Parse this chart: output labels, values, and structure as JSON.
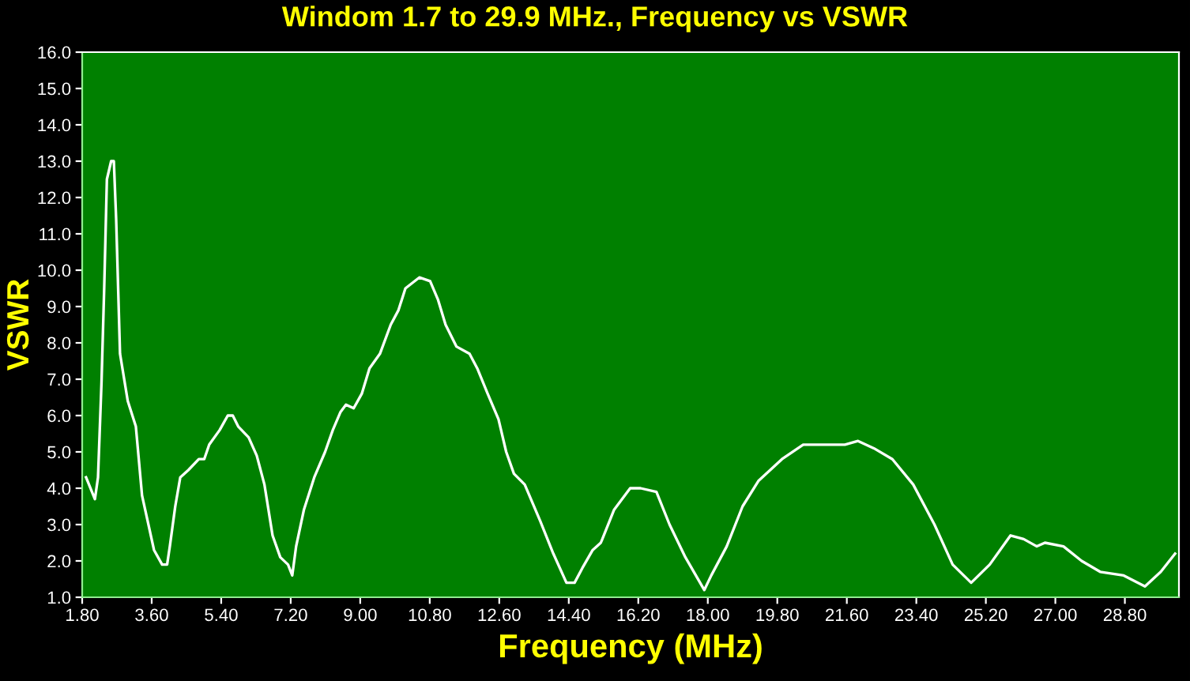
{
  "chart_data": {
    "type": "line",
    "title": "Windom 1.7 to 29.9 MHz., Frequency vs VSWR",
    "xlabel": "Frequency (MHz)",
    "ylabel": "VSWR",
    "series": [
      {
        "color": "#ffffff",
        "x": [
          1.9,
          2.13,
          2.21,
          2.3,
          2.37,
          2.44,
          2.55,
          2.62,
          2.68,
          2.78,
          2.98,
          3.19,
          3.35,
          3.66,
          3.87,
          4.0,
          4.07,
          4.21,
          4.34,
          4.55,
          4.82,
          4.96,
          5.09,
          5.36,
          5.57,
          5.7,
          5.84,
          6.11,
          6.32,
          6.52,
          6.73,
          6.93,
          7.13,
          7.24,
          7.34,
          7.54,
          7.81,
          8.09,
          8.29,
          8.49,
          8.63,
          8.83,
          9.04,
          9.24,
          9.51,
          9.79,
          9.99,
          10.17,
          10.53,
          10.81,
          11.01,
          11.21,
          11.49,
          11.83,
          12.03,
          12.3,
          12.58,
          12.78,
          12.98,
          13.26,
          13.66,
          14.0,
          14.34,
          14.55,
          14.75,
          15.02,
          15.23,
          15.57,
          15.99,
          16.26,
          16.67,
          17.01,
          17.42,
          17.91,
          18.09,
          18.49,
          18.9,
          19.31,
          19.92,
          20.47,
          20.87,
          21.55,
          21.89,
          22.3,
          22.78,
          23.32,
          23.87,
          24.34,
          24.82,
          25.3,
          25.84,
          26.18,
          26.52,
          26.73,
          27.21,
          27.68,
          28.16,
          28.77,
          29.32,
          29.73,
          30.1
        ],
        "values": [
          4.3,
          3.7,
          4.3,
          6.9,
          9.5,
          12.5,
          13.0,
          13.0,
          11.4,
          7.7,
          6.4,
          5.7,
          3.8,
          2.3,
          1.9,
          1.9,
          2.4,
          3.5,
          4.3,
          4.5,
          4.8,
          4.8,
          5.2,
          5.6,
          6.0,
          6.0,
          5.7,
          5.4,
          4.9,
          4.1,
          2.7,
          2.1,
          1.9,
          1.6,
          2.4,
          3.4,
          4.3,
          5.0,
          5.6,
          6.1,
          6.3,
          6.2,
          6.6,
          7.3,
          7.7,
          8.5,
          8.9,
          9.5,
          9.8,
          9.7,
          9.2,
          8.5,
          7.9,
          7.7,
          7.3,
          6.6,
          5.9,
          5.0,
          4.4,
          4.1,
          3.1,
          2.2,
          1.4,
          1.4,
          1.8,
          2.3,
          2.5,
          3.4,
          4.0,
          4.0,
          3.9,
          3.0,
          2.1,
          1.2,
          1.6,
          2.4,
          3.5,
          4.2,
          4.8,
          5.2,
          5.2,
          5.2,
          5.3,
          5.1,
          4.8,
          4.1,
          3.0,
          1.9,
          1.4,
          1.9,
          2.7,
          2.6,
          2.4,
          2.5,
          2.4,
          2.0,
          1.7,
          1.6,
          1.3,
          1.7,
          2.2
        ]
      }
    ],
    "xlim": [
      1.8,
      30.2
    ],
    "ylim": [
      1.0,
      16.0
    ],
    "xticks": [
      {
        "value": 1.8,
        "label": "1.80"
      },
      {
        "value": 3.6,
        "label": "3.60"
      },
      {
        "value": 5.4,
        "label": "5.40"
      },
      {
        "value": 7.2,
        "label": "7.20"
      },
      {
        "value": 9.0,
        "label": "9.00"
      },
      {
        "value": 10.8,
        "label": "10.80"
      },
      {
        "value": 12.6,
        "label": "12.60"
      },
      {
        "value": 14.4,
        "label": "14.40"
      },
      {
        "value": 16.2,
        "label": "16.20"
      },
      {
        "value": 18.0,
        "label": "18.00"
      },
      {
        "value": 19.8,
        "label": "19.80"
      },
      {
        "value": 21.6,
        "label": "21.60"
      },
      {
        "value": 23.4,
        "label": "23.40"
      },
      {
        "value": 25.2,
        "label": "25.20"
      },
      {
        "value": 27.0,
        "label": "27.00"
      },
      {
        "value": 28.8,
        "label": "28.80"
      }
    ],
    "yticks": [
      {
        "value": 1,
        "label": "1.0"
      },
      {
        "value": 2,
        "label": "2.0"
      },
      {
        "value": 3,
        "label": "3.0"
      },
      {
        "value": 4,
        "label": "4.0"
      },
      {
        "value": 5,
        "label": "5.0"
      },
      {
        "value": 6,
        "label": "6.0"
      },
      {
        "value": 7,
        "label": "7.0"
      },
      {
        "value": 8,
        "label": "8.0"
      },
      {
        "value": 9,
        "label": "9.0"
      },
      {
        "value": 10,
        "label": "10.0"
      },
      {
        "value": 11,
        "label": "11.0"
      },
      {
        "value": 12,
        "label": "12.0"
      },
      {
        "value": 13,
        "label": "13.0"
      },
      {
        "value": 14,
        "label": "14.0"
      },
      {
        "value": 15,
        "label": "15.0"
      },
      {
        "value": 16,
        "label": "16.0"
      }
    ],
    "grid": false,
    "legend": false,
    "marker": "none",
    "line_style": "solid"
  }
}
